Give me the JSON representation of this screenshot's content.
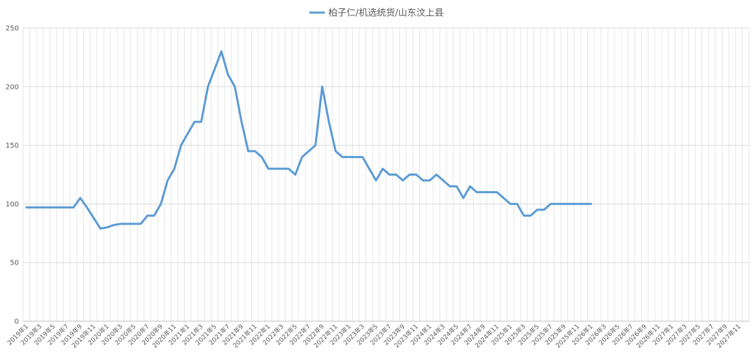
{
  "chart_data": {
    "type": "line",
    "categories": [
      "2019年1",
      null,
      "2019年3",
      null,
      "2019年5",
      null,
      "2019年7",
      null,
      "2019年9",
      null,
      "2019年11",
      null,
      "2020年1",
      null,
      "2020年3",
      null,
      "2020年5",
      null,
      "2020年7",
      null,
      "2020年9",
      null,
      "2020年11",
      null,
      "2021年1",
      null,
      "2021年3",
      null,
      "2021年5",
      null,
      "2021年7",
      null,
      "2021年9",
      null,
      "2021年11",
      null,
      "2022年1",
      null,
      "2022年3",
      null,
      "2022年5",
      null,
      "2022年7",
      null,
      "2022年9",
      null,
      "2022年11",
      null,
      "2023年1",
      null,
      "2023年3",
      null,
      "2023年5",
      null,
      "2023年7",
      null,
      "2023年9",
      null,
      "2023年11",
      null,
      "2024年1",
      null,
      "2024年3",
      null,
      "2024年5",
      null,
      "2024年7",
      null,
      "2024年9",
      null,
      "2024年11",
      null,
      "2025年1",
      null,
      "2025年3",
      null,
      "2025年5",
      null,
      "2025年7",
      null,
      "2025年9",
      null,
      "2025年11",
      null,
      "2026年1",
      null,
      "2026年3",
      null,
      "2026年5",
      null,
      "2026年7",
      null,
      "2026年9",
      null,
      "2026年11",
      null,
      "2027年1",
      null,
      "2027年3",
      null,
      "2027年5",
      null,
      "2027年7",
      null,
      "2027年9",
      null,
      "2027年11",
      null
    ],
    "series": [
      {
        "name": "柏子仁/机选统货/山东汶上县",
        "color": "#5b9bd5",
        "values": [
          97,
          97,
          97,
          97,
          97,
          97,
          97,
          97,
          105,
          97,
          88,
          79,
          80,
          82,
          83,
          83,
          83,
          83,
          90,
          90,
          100,
          120,
          130,
          150,
          160,
          170,
          170,
          200,
          215,
          230,
          210,
          200,
          170,
          145,
          145,
          140,
          130,
          130,
          130,
          130,
          125,
          140,
          145,
          150,
          200,
          170,
          145,
          140,
          140,
          140,
          140,
          130,
          120,
          130,
          125,
          125,
          120,
          125,
          125,
          120,
          120,
          125,
          120,
          115,
          115,
          105,
          115,
          110,
          110,
          110,
          110,
          105,
          100,
          100,
          90,
          90,
          95,
          95,
          100,
          100,
          100,
          100,
          100,
          100,
          100,
          null,
          null,
          null,
          null,
          null,
          null,
          null,
          null,
          null,
          null,
          null,
          null,
          null,
          null,
          null,
          null,
          null,
          null,
          null,
          null,
          null,
          null,
          null
        ]
      }
    ],
    "ylim": [
      0,
      250
    ],
    "yticks": [
      0,
      50,
      100,
      150,
      200,
      250
    ],
    "grid": true,
    "legend": "top"
  }
}
